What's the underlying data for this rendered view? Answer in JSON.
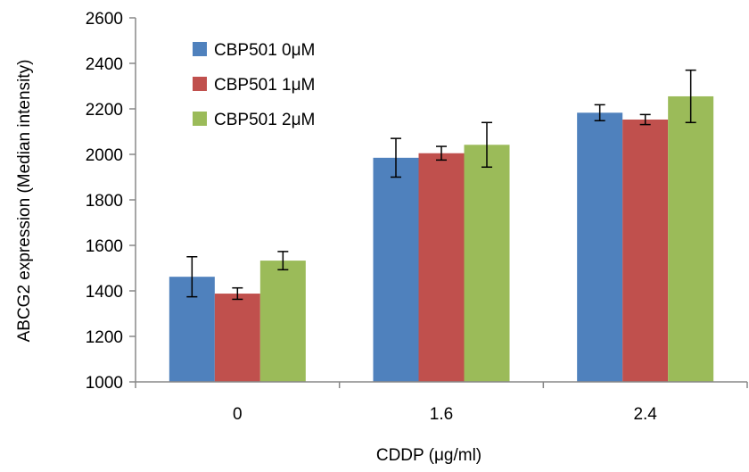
{
  "chart_data": {
    "type": "bar",
    "title": "",
    "xlabel": "CDDP (μg/ml)",
    "ylabel": "ABCG2 expression (Median intensity)",
    "categories": [
      "0",
      "1.6",
      "2.4"
    ],
    "ylim": [
      1000,
      2600
    ],
    "yticks": [
      1000,
      1200,
      1400,
      1600,
      1800,
      2000,
      2200,
      2400,
      2600
    ],
    "grid": false,
    "legend_position": "top-left",
    "series": [
      {
        "name": "CBP501 0μM",
        "color": "#4F81BD",
        "values": [
          1462,
          1985,
          2183
        ],
        "errors": [
          88,
          85,
          35
        ]
      },
      {
        "name": "CBP501 1μM",
        "color": "#C0504D",
        "values": [
          1388,
          2005,
          2153
        ],
        "errors": [
          25,
          30,
          22
        ]
      },
      {
        "name": "CBP501 2μM",
        "color": "#9BBB59",
        "values": [
          1533,
          2042,
          2255
        ],
        "errors": [
          40,
          98,
          115
        ]
      }
    ]
  }
}
